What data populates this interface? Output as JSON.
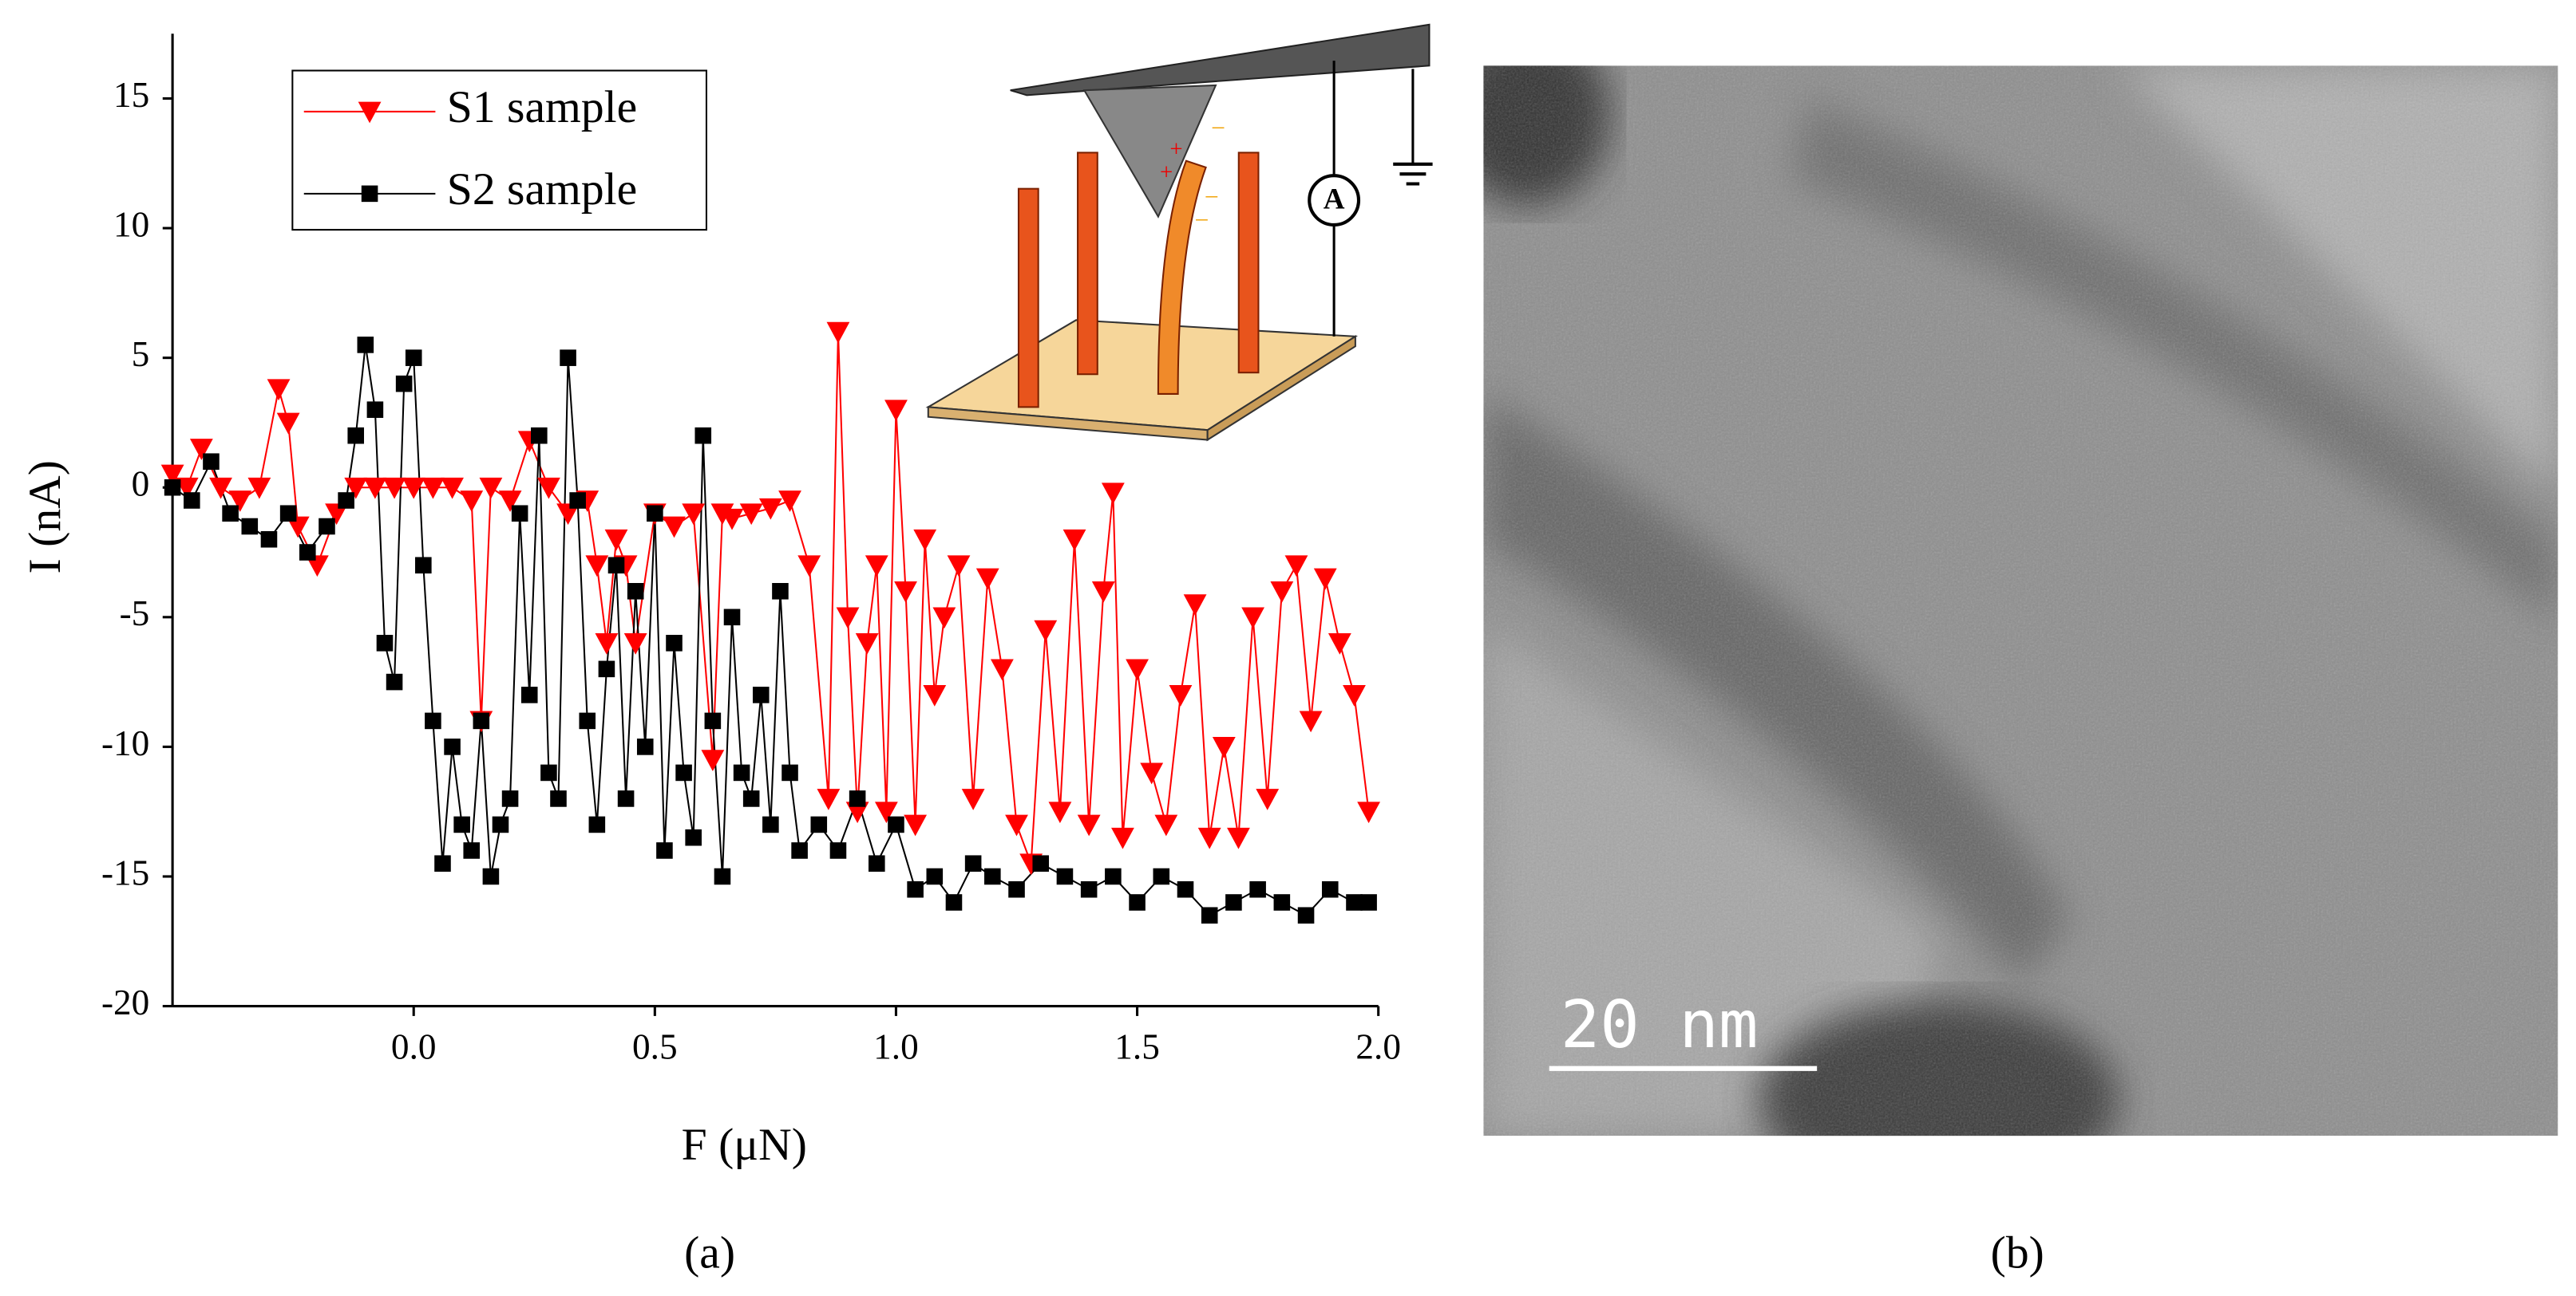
{
  "chart_data": {
    "type": "line",
    "xlabel": "F (μN)",
    "ylabel": "I (nA)",
    "xlim": [
      -0.5,
      2.0
    ],
    "ylim": [
      -20,
      17.5
    ],
    "xticks": [
      {
        "value": 0,
        "label": "0.0"
      },
      0.5,
      {
        "value": 1,
        "label": "1.0"
      },
      1.5,
      {
        "value": 2,
        "label": "2.0"
      }
    ],
    "yticks": [
      -20,
      -15,
      -10,
      -5,
      0,
      5,
      10,
      15
    ],
    "legend": "upper left",
    "series": [
      {
        "name": "S1 sample",
        "color": "#ff0000",
        "marker": "triangle-down",
        "x": [
          -0.5,
          -0.47,
          -0.44,
          -0.4,
          -0.36,
          -0.32,
          -0.28,
          -0.26,
          -0.24,
          -0.2,
          -0.16,
          -0.12,
          -0.08,
          -0.04,
          0,
          0.04,
          0.08,
          0.12,
          0.14,
          0.16,
          0.2,
          0.24,
          0.28,
          0.32,
          0.36,
          0.38,
          0.4,
          0.42,
          0.44,
          0.46,
          0.5,
          0.54,
          0.58,
          0.62,
          0.64,
          0.66,
          0.7,
          0.74,
          0.78,
          0.82,
          0.86,
          0.88,
          0.9,
          0.92,
          0.94,
          0.96,
          0.98,
          1.0,
          1.02,
          1.04,
          1.06,
          1.08,
          1.1,
          1.13,
          1.16,
          1.19,
          1.22,
          1.25,
          1.28,
          1.31,
          1.34,
          1.37,
          1.4,
          1.43,
          1.45,
          1.47,
          1.5,
          1.53,
          1.56,
          1.59,
          1.62,
          1.65,
          1.68,
          1.71,
          1.74,
          1.77,
          1.8,
          1.83,
          1.86,
          1.89,
          1.92,
          1.95,
          1.98
        ],
        "values": [
          0.5,
          0,
          1.5,
          0,
          -0.5,
          0,
          3.8,
          2.5,
          -1.5,
          -3,
          -1,
          0,
          0,
          0,
          0,
          0,
          0,
          -0.5,
          -9,
          0,
          -0.5,
          1.8,
          0,
          -1,
          -0.5,
          -3,
          -6,
          -2,
          -3,
          -6,
          -1,
          -1.5,
          -1,
          -10.5,
          -1,
          -1.2,
          -1,
          -0.8,
          -0.5,
          -3,
          -12,
          6,
          -5,
          -12.5,
          -6,
          -3,
          -12.5,
          3,
          -4,
          -13,
          -2,
          -8,
          -5,
          -3,
          -12,
          -3.5,
          -7,
          -13,
          -14.5,
          -5.5,
          -12.5,
          -2,
          -13,
          -4,
          -0.2,
          -13.5,
          -7,
          -11,
          -13,
          -8,
          -4.5,
          -13.5,
          -10,
          -13.5,
          -5,
          -12,
          -4,
          -3,
          -9,
          -3.5,
          -6,
          -8,
          -12.5
        ]
      },
      {
        "name": "S2 sample",
        "color": "#000000",
        "marker": "square",
        "x": [
          -0.5,
          -0.46,
          -0.42,
          -0.38,
          -0.34,
          -0.3,
          -0.26,
          -0.22,
          -0.18,
          -0.14,
          -0.12,
          -0.1,
          -0.08,
          -0.06,
          -0.04,
          -0.02,
          0,
          0.02,
          0.04,
          0.06,
          0.08,
          0.1,
          0.12,
          0.14,
          0.16,
          0.18,
          0.2,
          0.22,
          0.24,
          0.26,
          0.28,
          0.3,
          0.32,
          0.34,
          0.36,
          0.38,
          0.4,
          0.42,
          0.44,
          0.46,
          0.48,
          0.5,
          0.52,
          0.54,
          0.56,
          0.58,
          0.6,
          0.62,
          0.64,
          0.66,
          0.68,
          0.7,
          0.72,
          0.74,
          0.76,
          0.78,
          0.8,
          0.84,
          0.88,
          0.92,
          0.96,
          1.0,
          1.04,
          1.08,
          1.12,
          1.16,
          1.2,
          1.25,
          1.3,
          1.35,
          1.4,
          1.45,
          1.5,
          1.55,
          1.6,
          1.65,
          1.7,
          1.75,
          1.8,
          1.85,
          1.9,
          1.95,
          1.98
        ],
        "values": [
          0,
          -0.5,
          1,
          -1,
          -1.5,
          -2,
          -1,
          -2.5,
          -1.5,
          -0.5,
          2,
          5.5,
          3,
          -6,
          -7.5,
          4,
          5,
          -3,
          -9,
          -14.5,
          -10,
          -13,
          -14,
          -9,
          -15,
          -13,
          -12,
          -1,
          -8,
          2,
          -11,
          -12,
          5,
          -0.5,
          -9,
          -13,
          -7,
          -3,
          -12,
          -4,
          -10,
          -1,
          -14,
          -6,
          -11,
          -13.5,
          2,
          -9,
          -15,
          -5,
          -11,
          -12,
          -8,
          -13,
          -4,
          -11,
          -14,
          -13,
          -14,
          -12,
          -14.5,
          -13,
          -15.5,
          -15,
          -16,
          -14.5,
          -15,
          -15.5,
          -14.5,
          -15,
          -15.5,
          -15,
          -16,
          -15,
          -15.5,
          -16.5,
          -16,
          -15.5,
          -16,
          -16.5,
          -15.5,
          -16,
          -16
        ]
      }
    ]
  },
  "inset": {
    "ammeter_label": "A"
  },
  "image": {
    "scale_bar": "20 nm"
  },
  "panel_labels": [
    "(a)",
    "(b)"
  ]
}
